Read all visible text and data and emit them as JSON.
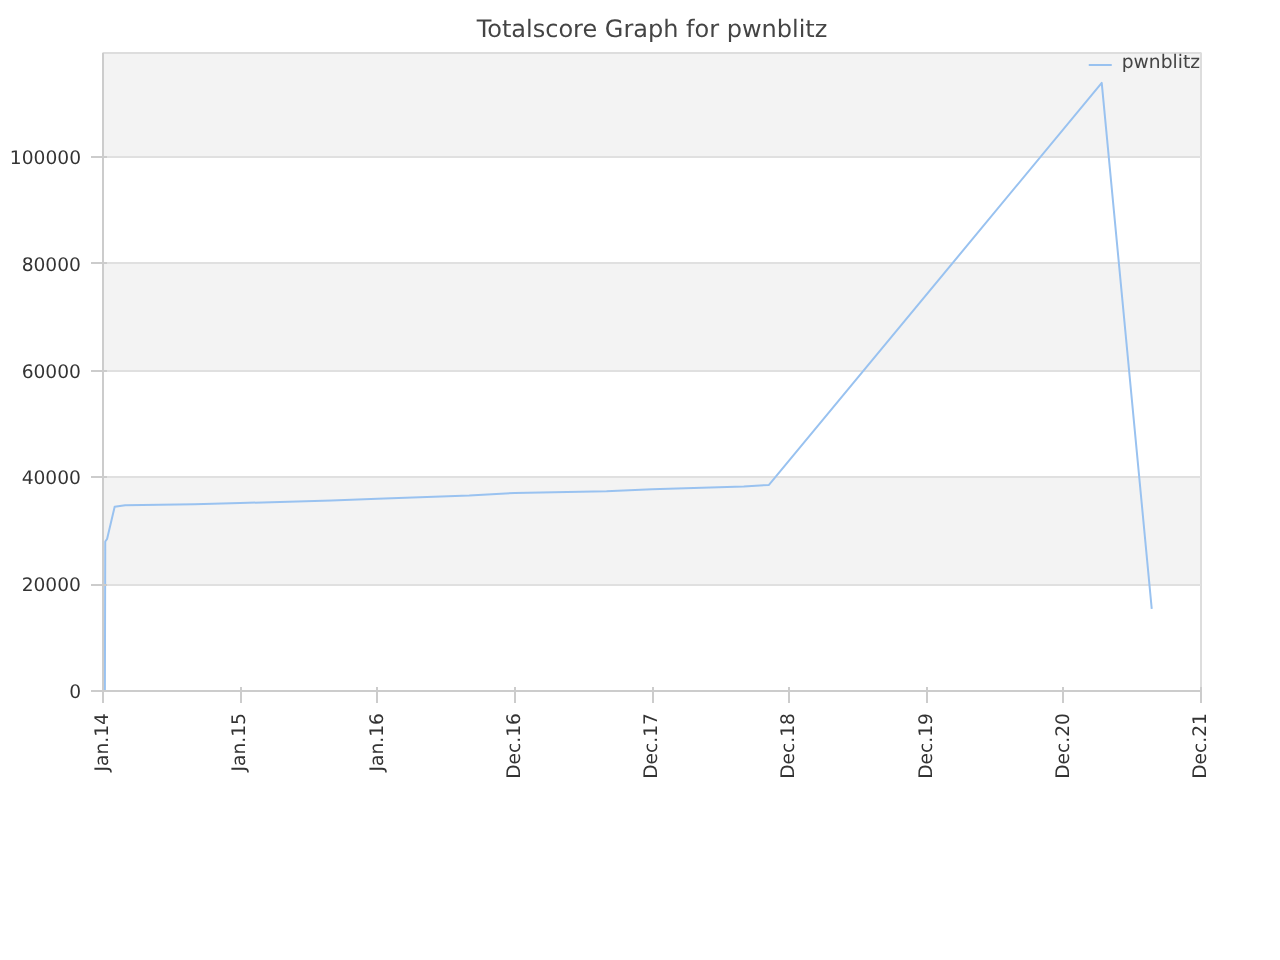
{
  "chart_data": {
    "type": "line",
    "title": "Totalscore Graph for pwnblitz",
    "x": [
      "2014-01-06",
      "2014-01-07",
      "2014-01-12",
      "2014-02-01",
      "2014-03-01",
      "2014-09-01",
      "2015-01-01",
      "2015-09-01",
      "2016-01-01",
      "2016-09-01",
      "2016-12-31",
      "2017-09-01",
      "2017-12-31",
      "2018-09-01",
      "2018-11-07",
      "2021-04-10",
      "2021-08-21"
    ],
    "series": [
      {
        "name": "pwnblitz",
        "color": "#99c2f0",
        "values": [
          0,
          28000,
          28500,
          34500,
          34800,
          35000,
          35200,
          35700,
          36000,
          36600,
          37100,
          37400,
          37800,
          38300,
          38600,
          113900,
          15400
        ]
      }
    ],
    "xlim": [
      "2014-01-01",
      "2021-12-30"
    ],
    "xticks": [
      {
        "value": "2014-01-01",
        "label": "Jan.14"
      },
      {
        "value": "2015-01-01",
        "label": "Jan.15"
      },
      {
        "value": "2016-01-01",
        "label": "Jan.16"
      },
      {
        "value": "2016-12-31",
        "label": "Dec.16"
      },
      {
        "value": "2017-12-31",
        "label": "Dec.17"
      },
      {
        "value": "2018-12-31",
        "label": "Dec.18"
      },
      {
        "value": "2019-12-31",
        "label": "Dec.19"
      },
      {
        "value": "2020-12-30",
        "label": "Dec.20"
      },
      {
        "value": "2021-12-30",
        "label": "Dec.21"
      }
    ],
    "ylim": [
      0,
      119500
    ],
    "yticks": [
      0,
      20000,
      40000,
      60000,
      80000,
      100000
    ],
    "grid": "y",
    "legend": "top right",
    "marker": "none",
    "line_style": "solid"
  }
}
